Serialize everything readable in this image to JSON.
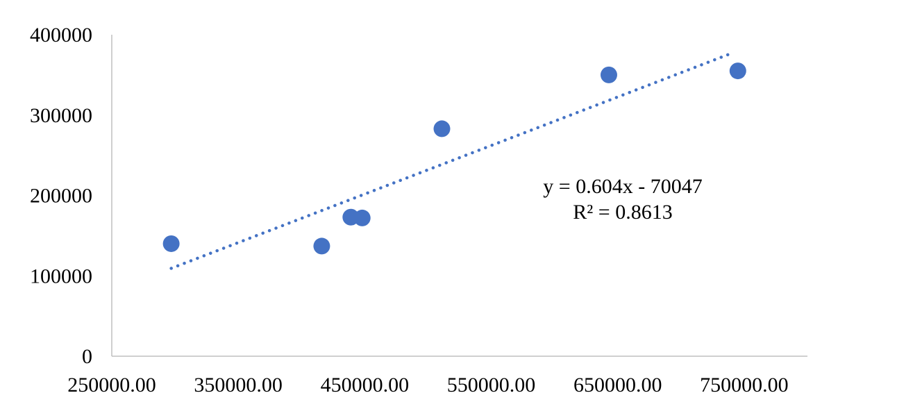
{
  "chart_data": {
    "type": "scatter",
    "title": "",
    "xlabel": "",
    "ylabel": "",
    "xlim": [
      250000,
      800000
    ],
    "ylim": [
      0,
      400000
    ],
    "x_ticks": [
      250000,
      350000,
      450000,
      550000,
      650000,
      750000
    ],
    "x_tick_labels": [
      "250000.00",
      "350000.00",
      "450000.00",
      "550000.00",
      "650000.00",
      "750000.00"
    ],
    "y_ticks": [
      0,
      100000,
      200000,
      300000,
      400000
    ],
    "y_tick_labels": [
      "0",
      "100000",
      "200000",
      "300000",
      "400000"
    ],
    "grid": false,
    "legend": "none",
    "series": [
      {
        "color": "#4472C4",
        "points": [
          {
            "x": 297000,
            "y": 140000
          },
          {
            "x": 416000,
            "y": 137000
          },
          {
            "x": 439000,
            "y": 173000
          },
          {
            "x": 448000,
            "y": 172000
          },
          {
            "x": 511000,
            "y": 283000
          },
          {
            "x": 643000,
            "y": 350000
          },
          {
            "x": 745000,
            "y": 355000
          }
        ]
      }
    ],
    "trendline": {
      "type": "linear",
      "style": "dotted",
      "color": "#4472C4",
      "slope": 0.604,
      "intercept": -70047,
      "x_range": [
        297000,
        740000
      ],
      "equation_label": "y = 0.604x - 70047",
      "r2_label": "R² = 0.8613"
    }
  }
}
